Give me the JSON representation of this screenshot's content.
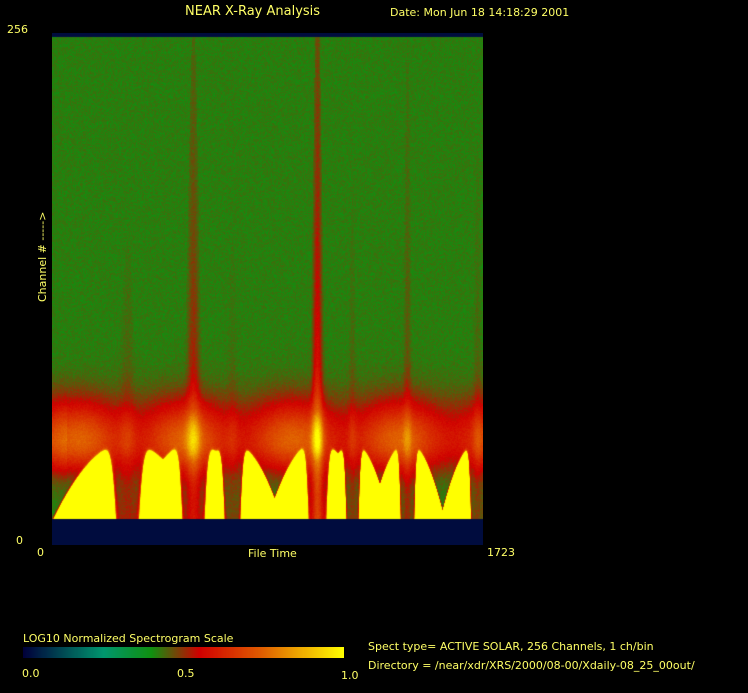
{
  "header": {
    "title": "NEAR X-Ray Analysis",
    "date": "Date: Mon Jun 18 14:18:29 2001"
  },
  "chart_data": {
    "type": "heatmap",
    "title": "NEAR X-Ray Analysis",
    "xlabel": "File Time",
    "ylabel": "Channel # ----->",
    "xlim": [
      0,
      1723
    ],
    "ylim": [
      0,
      256
    ],
    "x_ticks": [
      "0",
      "1723"
    ],
    "y_ticks": [
      "0",
      "256"
    ],
    "colorbar": {
      "label": "LOG10 Normalized Spectrogram Scale",
      "range": [
        0.0,
        1.0
      ],
      "ticks": [
        "0.0",
        "0.5",
        "1.0"
      ],
      "colors": [
        "#00003a",
        "#00a070",
        "#109010",
        "#d00000",
        "#e06000",
        "#ffff00"
      ]
    }
  },
  "info": {
    "spect_type": "Spect type= ACTIVE SOLAR,  256 Channels,         1 ch/bin",
    "directory": "Directory = /near/xdr/XRS/2000/08-00/Xdaily-08_25_00out/"
  }
}
